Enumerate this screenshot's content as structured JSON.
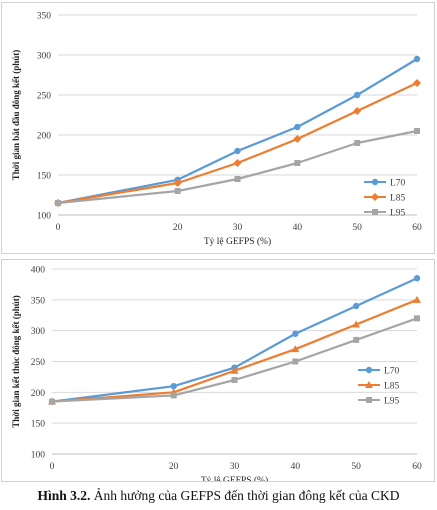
{
  "chart_data": [
    {
      "type": "line",
      "title": "",
      "xlabel": "Tỷ lệ GEFPS (%)",
      "ylabel": "Thời gian bắt đầu đông kết (phút)",
      "x": [
        0,
        20,
        30,
        40,
        50,
        60
      ],
      "xticks": [
        "0",
        "20",
        "30",
        "40",
        "50",
        "60"
      ],
      "ylim": [
        100,
        350
      ],
      "yticks": [
        "100",
        "150",
        "200",
        "250",
        "300",
        "350"
      ],
      "grid": "horizontal",
      "legend": "right",
      "series": [
        {
          "name": "L70",
          "color": "#5b9bd5",
          "marker": "circle",
          "values": [
            115,
            144,
            180,
            210,
            250,
            295
          ]
        },
        {
          "name": "L85",
          "color": "#ed7d31",
          "marker": "diamond",
          "values": [
            115,
            140,
            165,
            195,
            230,
            265
          ]
        },
        {
          "name": "L95",
          "color": "#a5a5a5",
          "marker": "square",
          "values": [
            115,
            130,
            145,
            165,
            190,
            205
          ]
        }
      ]
    },
    {
      "type": "line",
      "title": "",
      "xlabel": "Tỷ lệ GEFPS (%)",
      "ylabel": "Thời gian kết thúc đông kết (phút)",
      "x": [
        0,
        20,
        30,
        40,
        50,
        60
      ],
      "xticks": [
        "0",
        "20",
        "30",
        "40",
        "50",
        "60"
      ],
      "ylim": [
        100,
        400
      ],
      "yticks": [
        "100",
        "150",
        "200",
        "250",
        "300",
        "350",
        "400"
      ],
      "grid": "horizontal",
      "legend": "right",
      "series": [
        {
          "name": "L70",
          "color": "#5b9bd5",
          "marker": "circle",
          "values": [
            185,
            210,
            240,
            295,
            340,
            385
          ]
        },
        {
          "name": "L85",
          "color": "#ed7d31",
          "marker": "triangle",
          "values": [
            185,
            200,
            235,
            270,
            310,
            350
          ]
        },
        {
          "name": "L95",
          "color": "#a5a5a5",
          "marker": "square",
          "values": [
            185,
            195,
            220,
            250,
            285,
            320
          ]
        }
      ]
    }
  ],
  "caption": {
    "label": "Hình 3.2.",
    "text": " Ảnh hưởng của GEFPS đến thời gian đông kết của CKD"
  }
}
